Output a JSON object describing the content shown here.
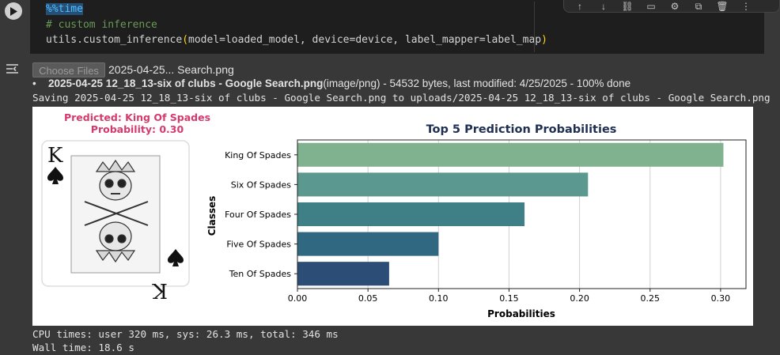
{
  "code": {
    "line1": "%%time",
    "line2": "# custom inference",
    "line3_pre": "utils.custom_inference",
    "line3_open": "(",
    "line3_args": "model=loaded_model, device=device, label_mapper=label_map",
    "line3_close": ")"
  },
  "upload": {
    "button_label": "Choose Files",
    "selected_file": "2025-04-25... Search.png",
    "file_name": "2025-04-25 12_18_13-six of clubs - Google Search.png",
    "file_meta": "(image/png) - 54532 bytes, last modified: 4/25/2025 - 100% done",
    "saving_text": "Saving 2025-04-25 12_18_13-six of clubs - Google Search.png to uploads/2025-04-25 12_18_13-six of clubs - Google Search.png"
  },
  "prediction": {
    "predicted_line": "Predicted: King Of Spades",
    "probability_line": "Probability: 0.30",
    "card_rank": "K"
  },
  "chart_data": {
    "type": "bar",
    "orientation": "horizontal",
    "title": "Top 5 Prediction Probabilities",
    "xlabel": "Probabilities",
    "ylabel": "Classes",
    "categories": [
      "King Of Spades",
      "Six Of Spades",
      "Four Of Spades",
      "Five Of Spades",
      "Ten Of Spades"
    ],
    "values": [
      0.302,
      0.206,
      0.161,
      0.1,
      0.065
    ],
    "colors": [
      "#80b28f",
      "#5b9990",
      "#3f7f86",
      "#2f6880",
      "#2c4e76"
    ],
    "xlim": [
      0,
      0.318
    ],
    "xticks": [
      "0.00",
      "0.05",
      "0.10",
      "0.15",
      "0.20",
      "0.25",
      "0.30"
    ],
    "xtick_values": [
      0,
      0.05,
      0.1,
      0.15,
      0.2,
      0.25,
      0.3
    ],
    "grid": "vertical"
  },
  "timing": {
    "cpu": "CPU times: user 320 ms, sys: 26.3 ms, total: 346 ms",
    "wall": "Wall time: 18.6 s"
  }
}
